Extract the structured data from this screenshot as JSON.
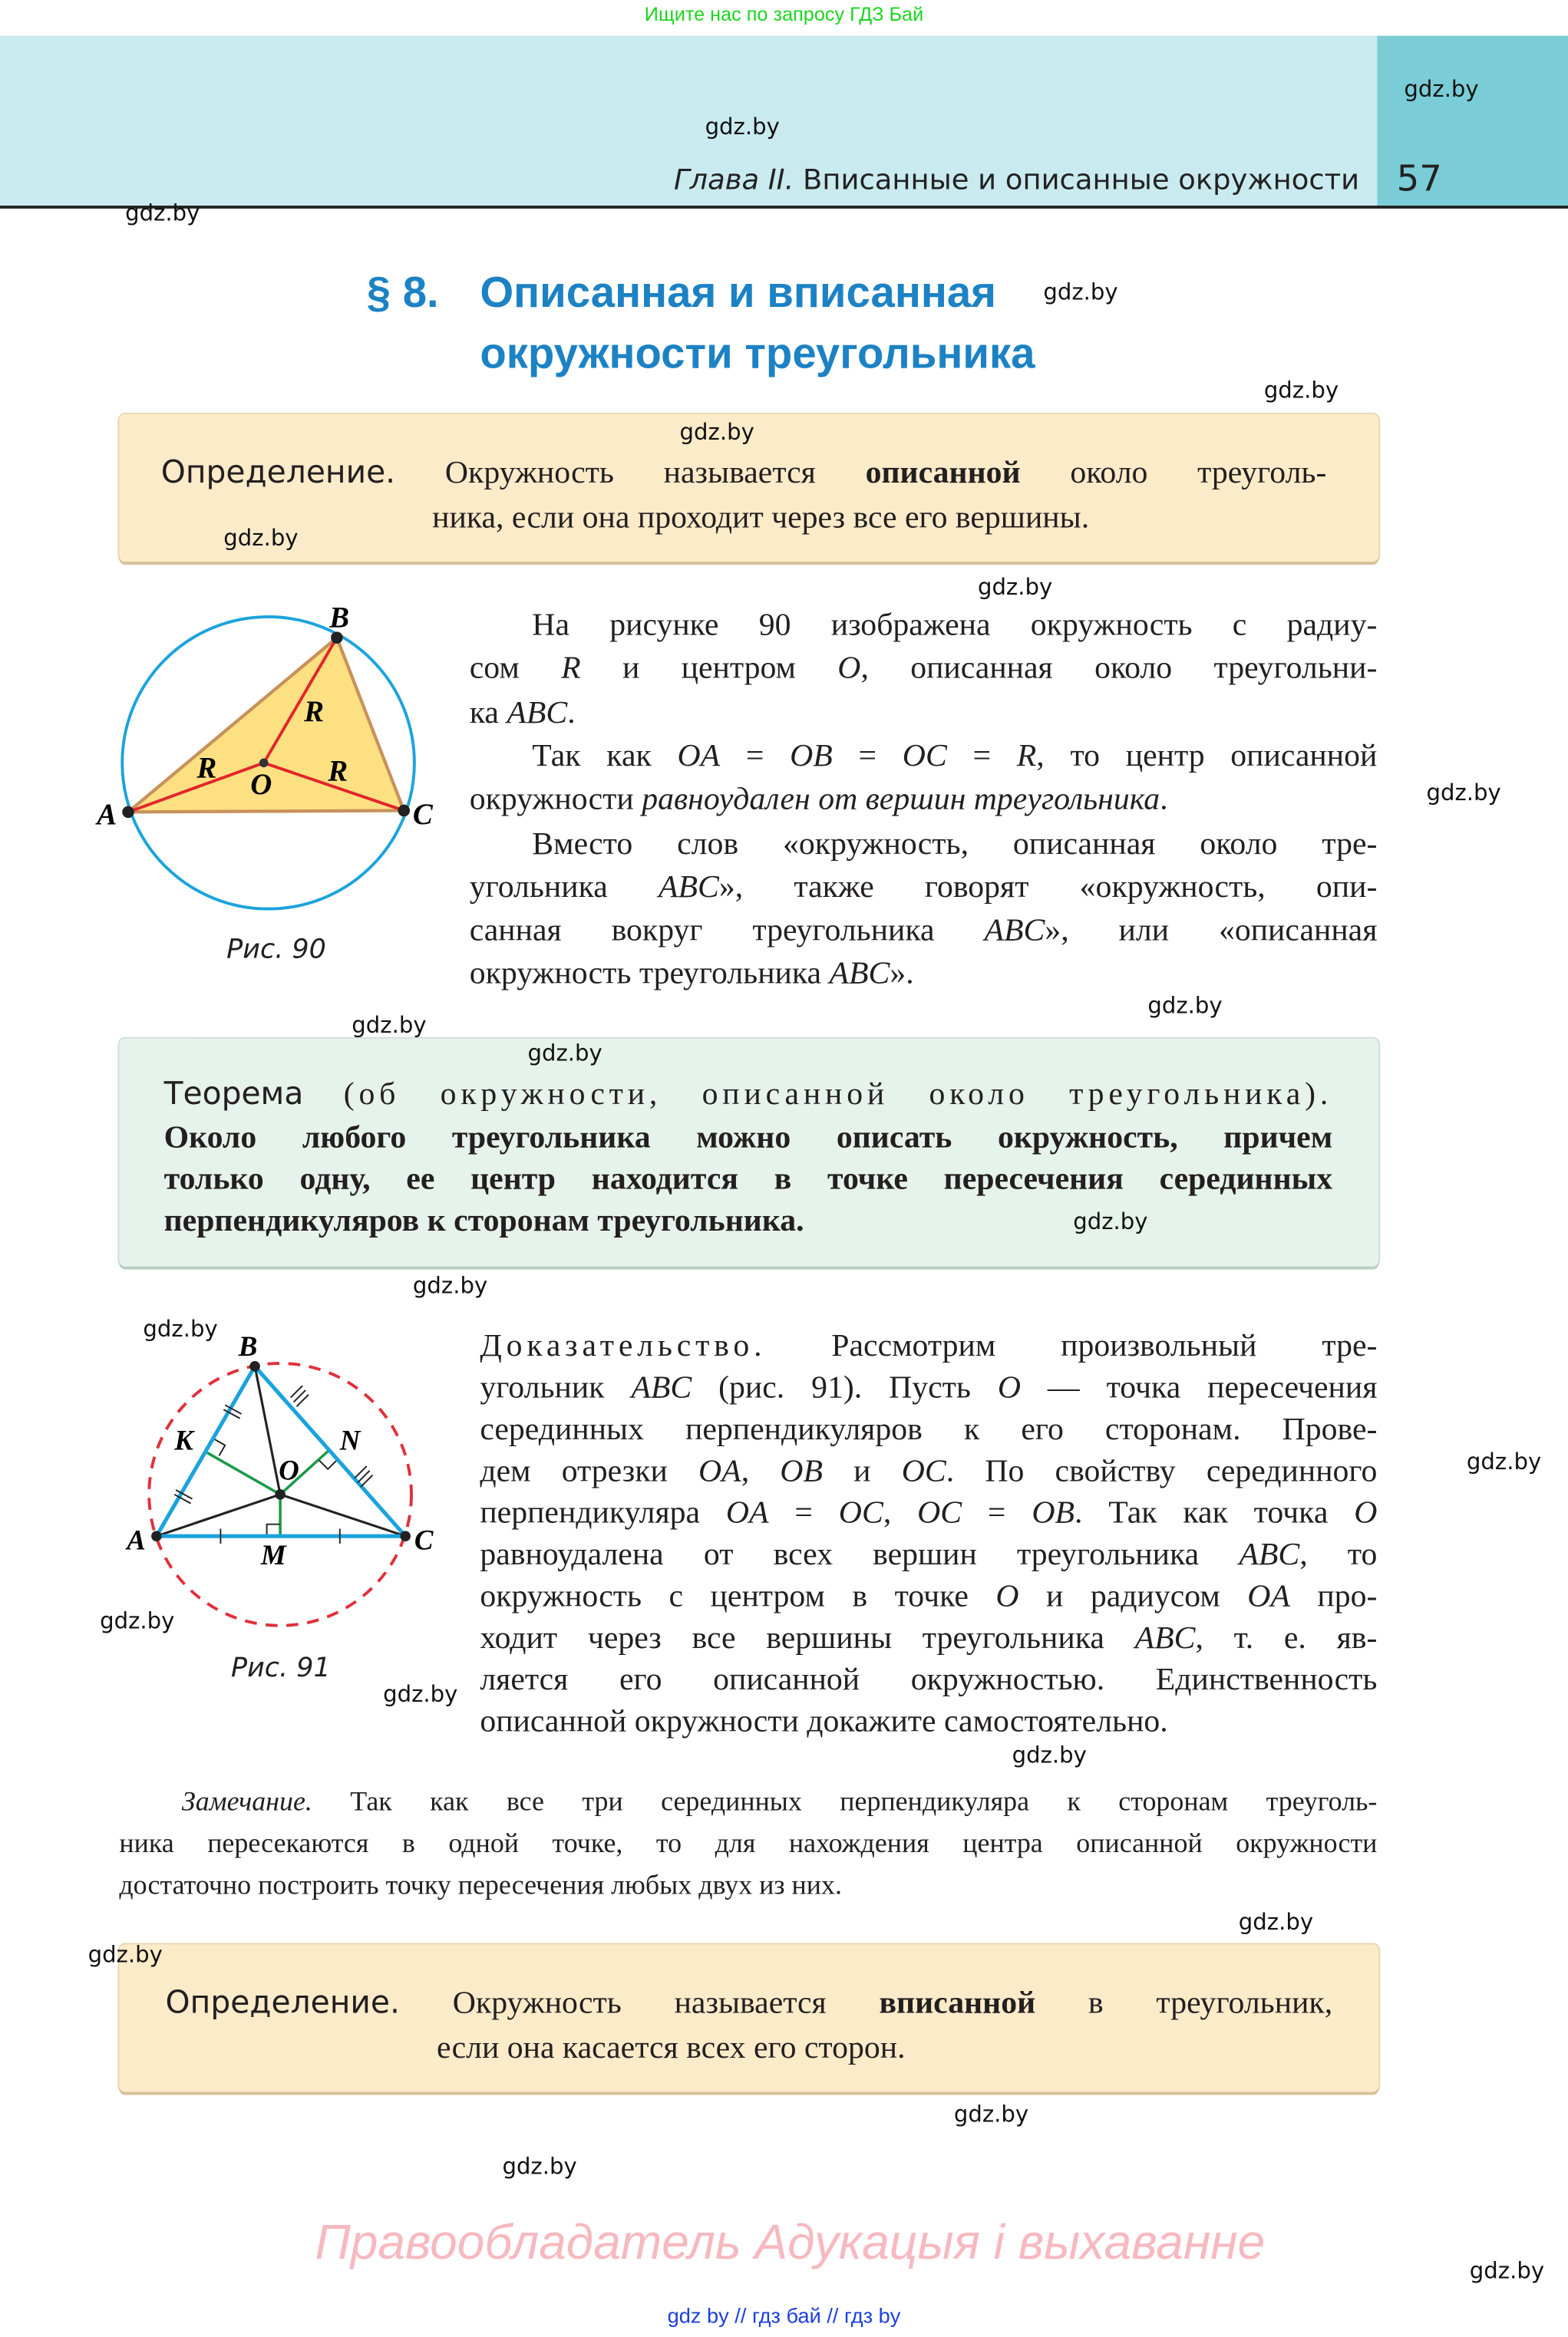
{
  "top_note": "Ищите нас по запросу ГДЗ Бай",
  "header": {
    "chapter_prefix": "Глава II.",
    "chapter_title": "Вписанные и описанные окружности",
    "page_number": "57",
    "band_color": "#c9eaef",
    "page_tab_color": "#7acdd6"
  },
  "section": {
    "number": "§ 8.",
    "title_line1": "Описанная и вписанная",
    "title_line2": "окружности треугольника",
    "color": "#1c82c4"
  },
  "definition1": {
    "label": "Определение.",
    "lines": [
      [
        [
          "",
          " Окружность называется "
        ],
        [
          "b",
          "описанной"
        ],
        [
          "",
          " около треуголь-"
        ]
      ],
      [
        [
          "",
          "ника, если она проходит через все его вершины."
        ]
      ]
    ]
  },
  "figure90": {
    "caption": "Рис. 90",
    "labels": {
      "A": "A",
      "B": "B",
      "C": "C",
      "O": "O",
      "R": "R"
    }
  },
  "paragraph1": [
    [
      [
        "",
        "На рисунке 90 изображена окружность с радиу-"
      ]
    ],
    [
      [
        "",
        "сом "
      ],
      [
        "i",
        "R"
      ],
      [
        "",
        " и центром "
      ],
      [
        "i",
        "O"
      ],
      [
        "",
        ", описанная около треугольни-"
      ]
    ],
    [
      [
        "",
        "ка "
      ],
      [
        "i",
        "ABC"
      ],
      [
        "",
        "."
      ]
    ],
    [
      [
        "",
        "Так как "
      ],
      [
        "i",
        "OA"
      ],
      [
        "",
        " = "
      ],
      [
        "i",
        "OB"
      ],
      [
        "",
        " = "
      ],
      [
        "i",
        "OC"
      ],
      [
        "",
        " = "
      ],
      [
        "i",
        "R"
      ],
      [
        "",
        ", то центр описанной"
      ]
    ],
    [
      [
        "",
        "окружности "
      ],
      [
        "i",
        "равноудален от вершин треугольника"
      ],
      [
        "",
        "."
      ]
    ],
    [
      [
        "",
        "Вместо слов «окружность, описанная около тре-"
      ]
    ],
    [
      [
        "",
        "угольника "
      ],
      [
        "i",
        "ABC"
      ],
      [
        "",
        "», также говорят «окружность, опи-"
      ]
    ],
    [
      [
        "",
        "санная вокруг треугольника "
      ],
      [
        "i",
        "ABC"
      ],
      [
        "",
        "», или «описанная"
      ]
    ],
    [
      [
        "",
        "окружность треугольника "
      ],
      [
        "i",
        "ABC"
      ],
      [
        "",
        "»."
      ]
    ]
  ],
  "theorem": {
    "label": "Теорема",
    "subtitle": " (об окружности, описанной около треугольника).",
    "lines": [
      [
        [
          "b",
          "Около любого треугольника можно описать окружность, причем"
        ]
      ],
      [
        [
          "b",
          "только одну, ее центр находится в точке пересечения серединных"
        ]
      ],
      [
        [
          "b",
          "перпендикуляров к сторонам треугольника."
        ]
      ]
    ]
  },
  "figure91": {
    "caption": "Рис. 91",
    "labels": {
      "A": "A",
      "B": "B",
      "C": "C",
      "O": "O",
      "K": "K",
      "N": "N",
      "M": "M"
    }
  },
  "proof": [
    [
      [
        "sp",
        "Доказательство."
      ],
      [
        "",
        " Рассмотрим произвольный тре-"
      ]
    ],
    [
      [
        "",
        "угольник "
      ],
      [
        "i",
        "ABC"
      ],
      [
        "",
        " (рис. 91). Пусть "
      ],
      [
        "i",
        "O"
      ],
      [
        "",
        " — точка пересечения"
      ]
    ],
    [
      [
        "",
        "серединных перпендикуляров к его сторонам. Прове-"
      ]
    ],
    [
      [
        "",
        "дем отрезки "
      ],
      [
        "i",
        "OA"
      ],
      [
        "",
        ", "
      ],
      [
        "i",
        "OB"
      ],
      [
        "",
        " и "
      ],
      [
        "i",
        "OC"
      ],
      [
        "",
        ". По свойству серединного"
      ]
    ],
    [
      [
        "",
        "перпендикуляра "
      ],
      [
        "i",
        "OA"
      ],
      [
        "",
        " = "
      ],
      [
        "i",
        "OC"
      ],
      [
        "",
        ", "
      ],
      [
        "i",
        "OC"
      ],
      [
        "",
        " = "
      ],
      [
        "i",
        "OB"
      ],
      [
        "",
        ". Так как точка "
      ],
      [
        "i",
        "O"
      ]
    ],
    [
      [
        "",
        "равноудалена от всех вершин треугольника "
      ],
      [
        "i",
        "ABC"
      ],
      [
        "",
        ", то"
      ]
    ],
    [
      [
        "",
        "окружность с центром в точке "
      ],
      [
        "i",
        "O"
      ],
      [
        "",
        " и радиусом "
      ],
      [
        "i",
        "OA"
      ],
      [
        "",
        " про-"
      ]
    ],
    [
      [
        "",
        "ходит через все вершины треугольника "
      ],
      [
        "i",
        "ABC"
      ],
      [
        "",
        ", т. е. яв-"
      ]
    ],
    [
      [
        "",
        "ляется его описанной окружностью. Единственность"
      ]
    ],
    [
      [
        "",
        "описанной окружности докажите самостоятельно."
      ]
    ]
  ],
  "remark": [
    [
      [
        "i",
        "Замечание."
      ],
      [
        "",
        " Так как все три серединных перпендикуляра к сторонам треуголь-"
      ]
    ],
    [
      [
        "",
        "ника пересекаются в одной точке, то для нахождения центра описанной окружности"
      ]
    ],
    [
      [
        "",
        "достаточно построить точку пересечения любых двух из них."
      ]
    ]
  ],
  "definition2": {
    "label": "Определение.",
    "lines": [
      [
        [
          "",
          " Окружность называется "
        ],
        [
          "b",
          "вписанной"
        ],
        [
          "",
          " в треугольник,"
        ]
      ],
      [
        [
          "",
          "если она касается всех его сторон."
        ]
      ]
    ]
  },
  "watermark_site": "gdz.by",
  "copyright": "Правообладатель Адукацыя і выхаванне",
  "footer": "gdz by  //  гдз бай  //  гдз by"
}
